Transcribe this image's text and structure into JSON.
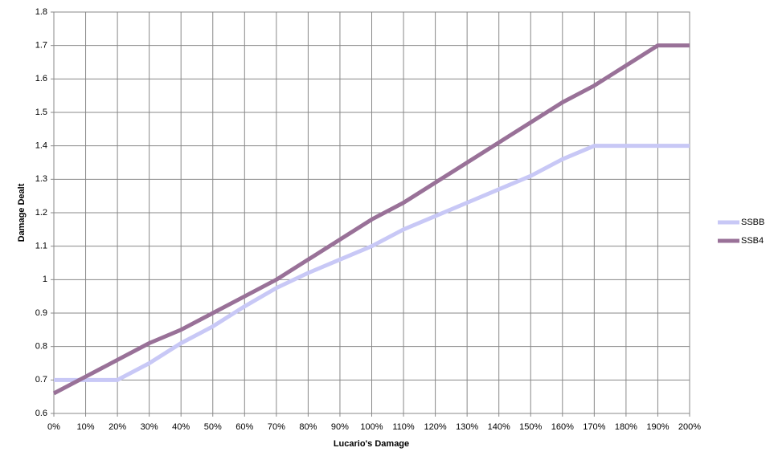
{
  "chart_data": {
    "type": "line",
    "x_label": "Lucario's Damage",
    "y_label": "Damage Dealt",
    "categories": [
      "0%",
      "10%",
      "20%",
      "30%",
      "40%",
      "50%",
      "60%",
      "70%",
      "80%",
      "90%",
      "100%",
      "110%",
      "120%",
      "130%",
      "140%",
      "150%",
      "160%",
      "170%",
      "180%",
      "190%",
      "200%"
    ],
    "series": [
      {
        "name": "SSBB",
        "color": "#c8c8f6",
        "values": [
          0.7,
          0.7,
          0.7,
          0.75,
          0.81,
          0.86,
          0.92,
          0.975,
          1.02,
          1.06,
          1.1,
          1.15,
          1.19,
          1.23,
          1.27,
          1.31,
          1.36,
          1.4,
          1.4,
          1.4,
          1.4
        ]
      },
      {
        "name": "SSB4",
        "color": "#997198",
        "values": [
          0.66,
          0.71,
          0.76,
          0.81,
          0.85,
          0.9,
          0.95,
          1.0,
          1.06,
          1.12,
          1.18,
          1.23,
          1.29,
          1.35,
          1.41,
          1.47,
          1.53,
          1.58,
          1.64,
          1.7,
          1.7
        ]
      }
    ],
    "ylim": [
      0.6,
      1.8
    ],
    "yticks": [
      0.6,
      0.7,
      0.8,
      0.9,
      1,
      1.1,
      1.2,
      1.3,
      1.4,
      1.5,
      1.6,
      1.7,
      1.8
    ],
    "grid": true,
    "legend": "right"
  }
}
